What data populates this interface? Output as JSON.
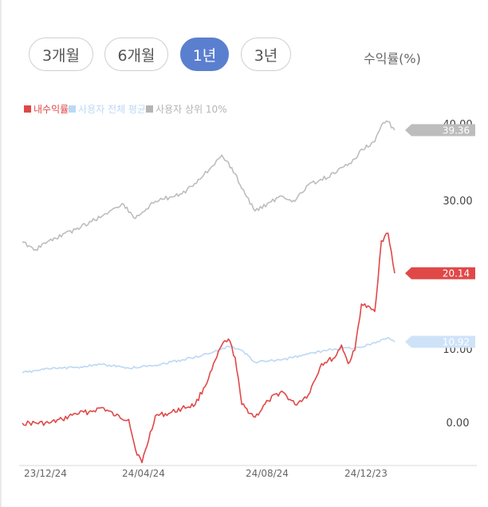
{
  "tabs": [
    {
      "label": "3개월",
      "active": false
    },
    {
      "label": "6개월",
      "active": false
    },
    {
      "label": "1년",
      "active": true
    },
    {
      "label": "3년",
      "active": false
    }
  ],
  "metric_label": "수익률(%)",
  "colors": {
    "accent": "#5b7fcf",
    "my_return": "#e04848",
    "avg": "#bcd8f5",
    "top10": "#bdbdbd"
  },
  "chart_data": {
    "type": "line",
    "x_ticks": [
      "23/12/24",
      "24/04/24",
      "24/08/24",
      "24/12/23"
    ],
    "y_ticks": [
      "40.00",
      "30.00",
      "10.00",
      "0.00"
    ],
    "ylim": [
      -4,
      41
    ],
    "legend_position": "top-left",
    "grid": false,
    "series": [
      {
        "name": "내수익률",
        "color": "#e04848",
        "last_label": "20.14",
        "x": [
          "2023-12-24",
          "2024-01-21",
          "2024-02-04",
          "2024-02-18",
          "2024-03-03",
          "2024-03-17",
          "2024-03-31",
          "2024-04-14",
          "2024-04-21",
          "2024-04-28",
          "2024-05-12",
          "2024-05-26",
          "2024-06-09",
          "2024-06-23",
          "2024-07-07",
          "2024-07-21",
          "2024-07-28",
          "2024-08-04",
          "2024-08-11",
          "2024-08-25",
          "2024-09-08",
          "2024-09-22",
          "2024-10-06",
          "2024-10-20",
          "2024-11-03",
          "2024-11-17",
          "2024-11-24",
          "2024-12-01",
          "2024-12-08",
          "2024-12-15",
          "2024-12-29",
          "2025-01-05",
          "2025-01-12",
          "2025-01-19"
        ],
        "values": [
          0,
          0,
          0.5,
          1.3,
          1.5,
          2.1,
          1.0,
          0.5,
          -3.5,
          -5.3,
          1.0,
          1.3,
          2.0,
          2.5,
          6.0,
          10.5,
          11.3,
          8.8,
          2.5,
          0.8,
          3.0,
          4.3,
          2.5,
          3.8,
          8.0,
          8.8,
          10.5,
          8.0,
          9.8,
          16.0,
          15.0,
          24.5,
          25.5,
          20.14
        ]
      },
      {
        "name": "사용자 전체 평균",
        "color": "#bcd8f5",
        "last_label": "10.92",
        "x": [
          "2023-12-24",
          "2024-01-21",
          "2024-02-18",
          "2024-03-17",
          "2024-04-14",
          "2024-05-12",
          "2024-06-09",
          "2024-07-07",
          "2024-07-28",
          "2024-08-11",
          "2024-08-25",
          "2024-09-22",
          "2024-10-20",
          "2024-11-17",
          "2024-12-15",
          "2025-01-12",
          "2025-01-19"
        ],
        "values": [
          6.8,
          7.3,
          7.5,
          7.9,
          7.4,
          7.8,
          8.5,
          9.3,
          10.3,
          9.8,
          8.2,
          8.5,
          9.3,
          10.0,
          10.2,
          11.5,
          10.92
        ]
      },
      {
        "name": "사용자 상위 10%",
        "color": "#bdbdbd",
        "last_label": "39.36",
        "x": [
          "2023-12-24",
          "2024-01-07",
          "2024-01-21",
          "2024-02-18",
          "2024-03-17",
          "2024-04-07",
          "2024-04-21",
          "2024-05-12",
          "2024-06-09",
          "2024-06-30",
          "2024-07-21",
          "2024-08-04",
          "2024-08-11",
          "2024-08-25",
          "2024-09-22",
          "2024-10-06",
          "2024-10-20",
          "2024-11-17",
          "2024-12-08",
          "2024-12-15",
          "2024-12-29",
          "2025-01-05",
          "2025-01-12",
          "2025-01-19"
        ],
        "values": [
          24.3,
          23.3,
          24.5,
          26.0,
          27.8,
          29.5,
          27.5,
          29.8,
          30.8,
          33.0,
          36.0,
          33.5,
          31.5,
          28.5,
          30.5,
          29.8,
          32.0,
          33.5,
          35.5,
          36.8,
          37.8,
          40.0,
          40.5,
          39.36
        ]
      }
    ]
  }
}
